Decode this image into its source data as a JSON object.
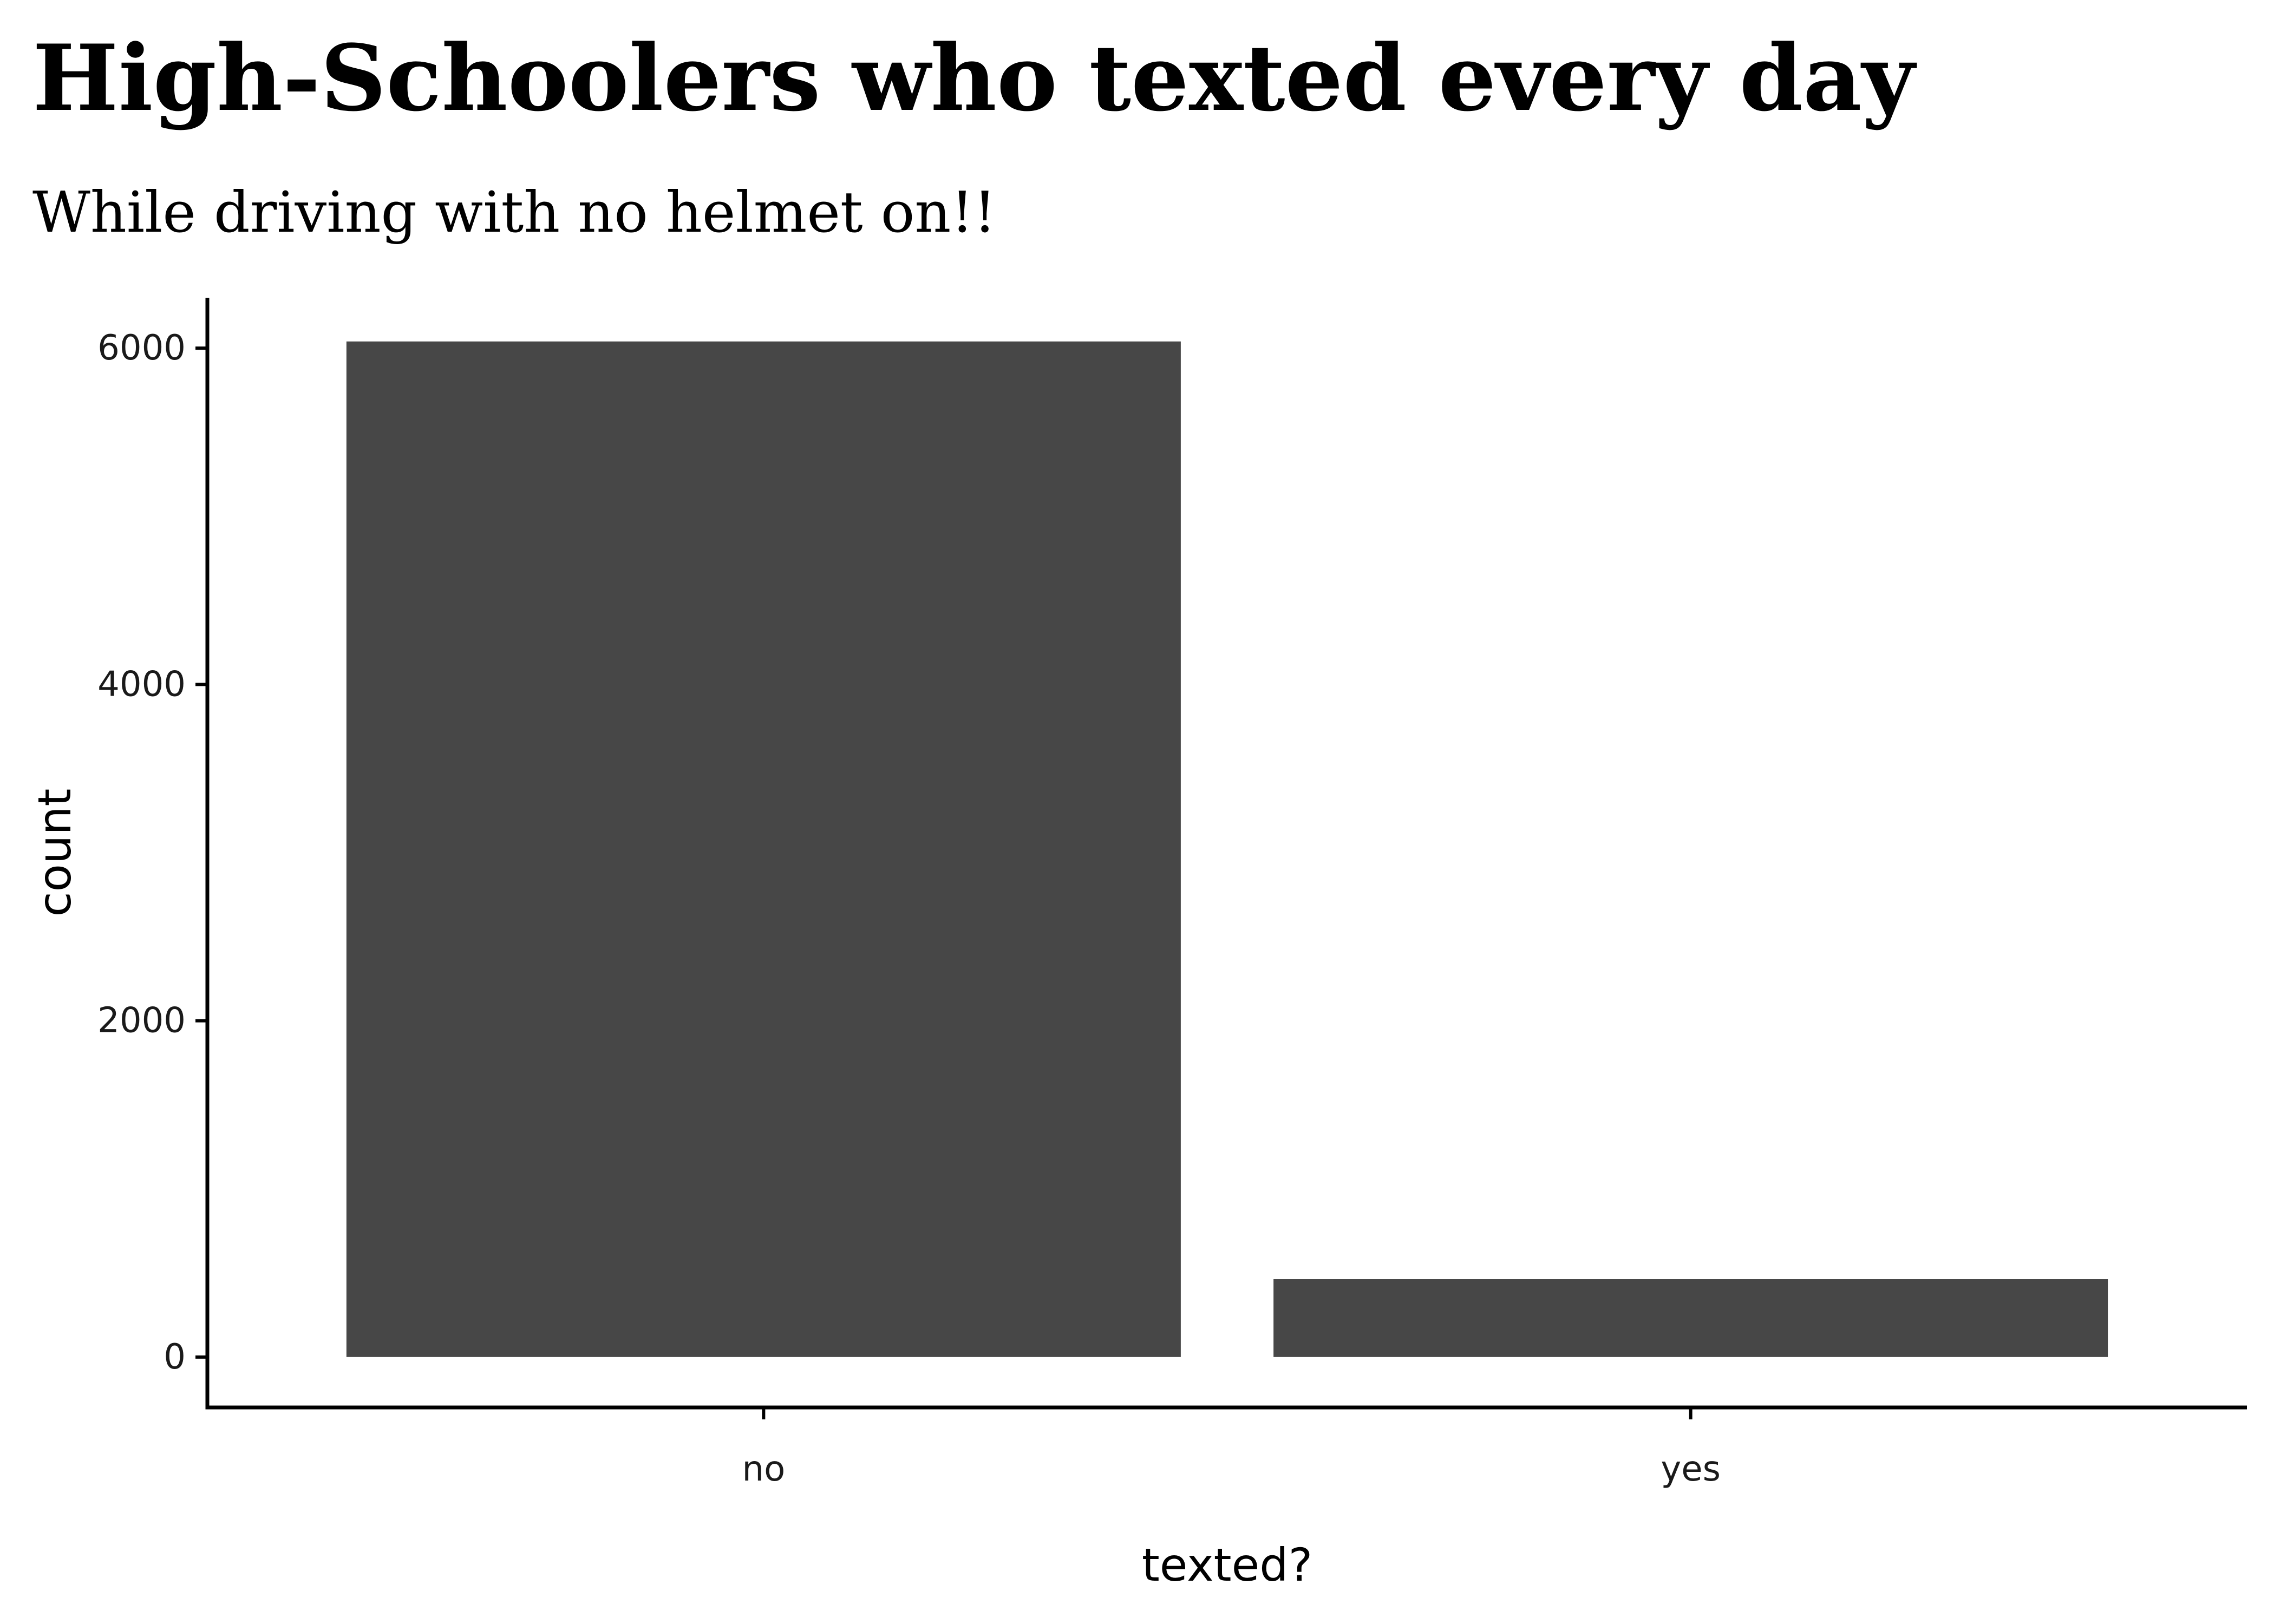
{
  "chart_data": {
    "type": "bar",
    "title": "High-Schoolers who texted every day",
    "subtitle": "While driving with no helmet on!!",
    "xlabel": "texted?",
    "ylabel": "count",
    "categories": [
      "no",
      "yes"
    ],
    "values": [
      6040,
      463
    ],
    "ylim": [
      -300,
      6300
    ],
    "yticks": [
      0,
      2000,
      4000,
      6000
    ],
    "bar_color": "#474747",
    "grid": false,
    "legend": "none"
  }
}
